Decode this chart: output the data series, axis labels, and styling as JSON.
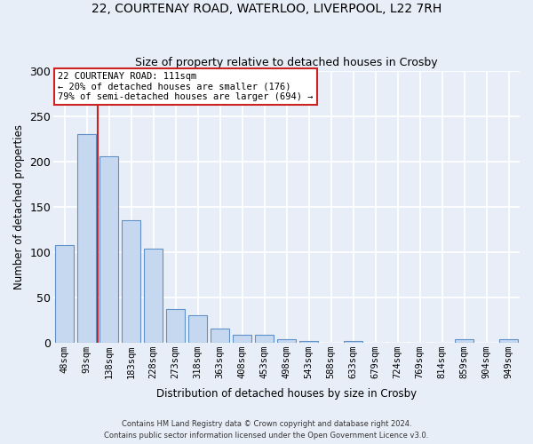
{
  "title1": "22, COURTENAY ROAD, WATERLOO, LIVERPOOL, L22 7RH",
  "title2": "Size of property relative to detached houses in Crosby",
  "xlabel": "Distribution of detached houses by size in Crosby",
  "ylabel": "Number of detached properties",
  "categories": [
    "48sqm",
    "93sqm",
    "138sqm",
    "183sqm",
    "228sqm",
    "273sqm",
    "318sqm",
    "363sqm",
    "408sqm",
    "453sqm",
    "498sqm",
    "543sqm",
    "588sqm",
    "633sqm",
    "679sqm",
    "724sqm",
    "769sqm",
    "814sqm",
    "859sqm",
    "904sqm",
    "949sqm"
  ],
  "values": [
    107,
    230,
    205,
    135,
    104,
    37,
    30,
    15,
    8,
    8,
    4,
    2,
    0,
    2,
    0,
    0,
    0,
    0,
    4,
    0,
    4
  ],
  "bar_color": "#c5d8f0",
  "bar_edge_color": "#6090c8",
  "vline_x": 1.5,
  "vline_color": "#cc2222",
  "annotation_text": "22 COURTENAY ROAD: 111sqm\n← 20% of detached houses are smaller (176)\n79% of semi-detached houses are larger (694) →",
  "annotation_box_color": "white",
  "annotation_box_edge_color": "#cc2222",
  "ylim": [
    0,
    300
  ],
  "yticks": [
    0,
    50,
    100,
    150,
    200,
    250,
    300
  ],
  "footer1": "Contains HM Land Registry data © Crown copyright and database right 2024.",
  "footer2": "Contains public sector information licensed under the Open Government Licence v3.0.",
  "bg_color": "#e8eef8",
  "grid_color": "white"
}
